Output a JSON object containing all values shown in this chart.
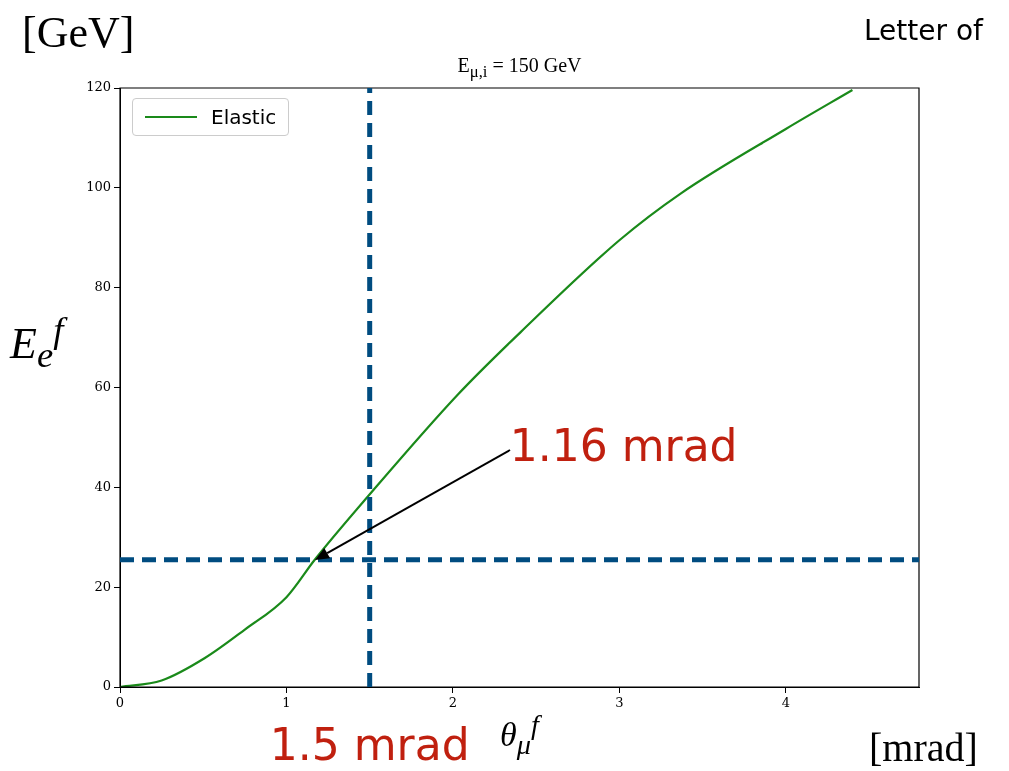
{
  "chart_data": {
    "type": "line",
    "title": "E$_{μ,i}$ = 150 GeV",
    "xlabel": "θ$_{μ}$$^{f}$",
    "ylabel": "E$_{e}$$^{f}$",
    "annotations": [
      "[GeV]",
      "[mrad]",
      "Letter of",
      "1.16 mrad"
    ],
    "x": [
      0,
      0.25,
      0.51,
      0.75,
      1,
      1.17,
      1.49,
      2.03,
      2.41,
      3.0,
      3.37,
      4.0,
      4.4
    ],
    "series": [
      {
        "name": "Elastic",
        "color": "#1a8a1a",
        "values": [
          0,
          1.3,
          5.8,
          11.5,
          18.0,
          25.5,
          38.2,
          58.6,
          71.2,
          89.5,
          98.9,
          111.8,
          119.6
        ]
      }
    ],
    "xlim": [
      0,
      4.8
    ],
    "ylim": [
      0,
      120
    ],
    "xticks": [
      0,
      1,
      2,
      3,
      4
    ],
    "yticks": [
      0,
      20,
      40,
      60,
      80,
      100,
      120
    ],
    "ref_lines": [
      {
        "axis": "x",
        "value": 1.5,
        "label": "1.5 mrad",
        "color": "#004c80",
        "line_style": "dashed"
      },
      {
        "axis": "y",
        "value": 25.5,
        "color": "#004c80",
        "line_style": "dashed"
      }
    ],
    "grid": false,
    "legend": "top left",
    "marker": "none",
    "line_style": "solid"
  }
}
